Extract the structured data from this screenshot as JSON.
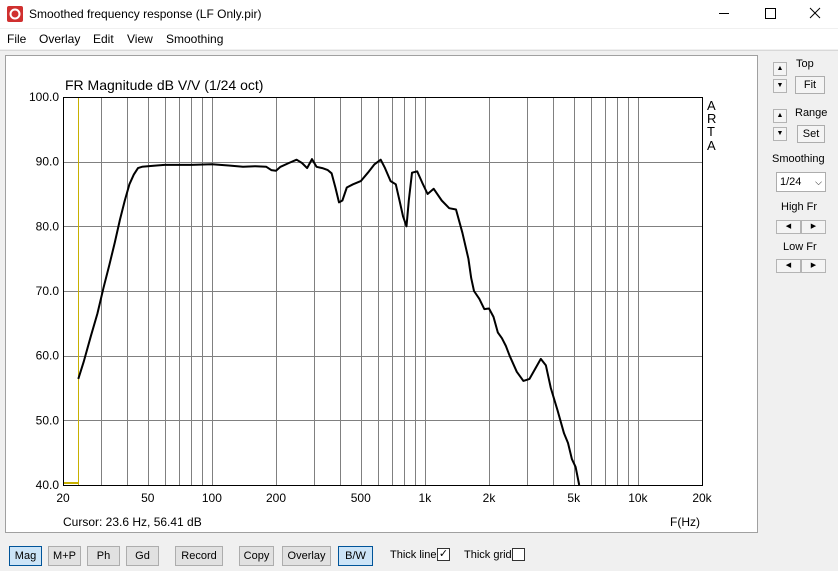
{
  "window": {
    "title": "Smoothed frequency response (LF Only.pir)",
    "minimize_glyph": "—",
    "maximize_glyph": "☐",
    "close_glyph": "✕"
  },
  "menu": [
    "File",
    "Overlay",
    "Edit",
    "View",
    "Smoothing"
  ],
  "plot": {
    "title": "FR Magnitude dB V/V (1/24 oct)",
    "watermark": [
      "A",
      "R",
      "T",
      "A"
    ],
    "cursor_text": "Cursor: 23.6 Hz, 56.41 dB",
    "x_unit_label": "F(Hz)",
    "cursor_freq_hz": 23.6,
    "trace_color": "#000000",
    "grid_color": "#808080",
    "cursor_color": "#c8b000"
  },
  "chart_data": {
    "type": "line",
    "title": "FR Magnitude dB V/V (1/24 oct)",
    "xlabel": "F(Hz)",
    "ylabel": "",
    "xscale": "log",
    "xlim": [
      20,
      20000
    ],
    "ylim": [
      40,
      100
    ],
    "x_ticks": [
      20,
      50,
      100,
      200,
      500,
      1000,
      2000,
      5000,
      10000,
      20000
    ],
    "x_tick_labels": [
      "20",
      "50",
      "100",
      "200",
      "500",
      "1k",
      "2k",
      "5k",
      "10k",
      "20k"
    ],
    "y_ticks": [
      40,
      50,
      60,
      70,
      80,
      90,
      100
    ],
    "y_tick_labels": [
      "40.0",
      "50.0",
      "60.0",
      "70.0",
      "80.0",
      "90.0",
      "100.0"
    ],
    "grid": true,
    "series": [
      {
        "x": [
          23.6,
          25,
          27,
          29,
          31,
          33,
          35,
          37,
          39,
          41,
          43,
          45,
          47,
          50,
          55,
          60,
          70,
          80,
          100,
          120,
          140,
          160,
          180,
          190,
          200,
          210,
          230,
          250,
          265,
          280,
          295,
          310,
          330,
          350,
          365,
          380,
          395,
          410,
          430,
          460,
          500,
          540,
          580,
          620,
          650,
          690,
          730,
          760,
          790,
          820,
          840,
          870,
          920,
          970,
          1030,
          1100,
          1200,
          1300,
          1400,
          1500,
          1600,
          1650,
          1700,
          1800,
          1900,
          2000,
          2100,
          2200,
          2300,
          2400,
          2500,
          2700,
          2900,
          3100,
          3300,
          3500,
          3700,
          3900,
          4200,
          4500,
          4700,
          4900,
          5100,
          5300
        ],
        "y": [
          56.41,
          59,
          63,
          66.5,
          70.5,
          74,
          77.5,
          81,
          84,
          86.5,
          88,
          89,
          89.2,
          89.3,
          89.4,
          89.5,
          89.5,
          89.5,
          89.6,
          89.4,
          89.2,
          89.3,
          89.2,
          88.7,
          88.6,
          89.2,
          89.8,
          90.3,
          89.8,
          89.0,
          90.4,
          89.2,
          89.0,
          88.7,
          88.2,
          86.0,
          83.7,
          84.0,
          86.0,
          86.5,
          87.0,
          88.3,
          89.6,
          90.3,
          89.0,
          87.0,
          86.5,
          84.0,
          81.5,
          80.0,
          84.0,
          88.3,
          88.5,
          86.8,
          85.0,
          85.8,
          84.0,
          82.8,
          82.6,
          79.0,
          75.0,
          72.0,
          70.0,
          68.8,
          67.2,
          67.3,
          66.0,
          63.6,
          62.7,
          61.5,
          60.0,
          57.5,
          56.1,
          56.4,
          58.0,
          59.5,
          58.5,
          55.0,
          51.5,
          48.0,
          46.5,
          44.0,
          42.8,
          40.0
        ]
      }
    ]
  },
  "sidebar": {
    "top_label": "Top",
    "fit_label": "Fit",
    "range_label": "Range",
    "set_label": "Set",
    "smoothing_label": "Smoothing",
    "smoothing_value": "1/24",
    "high_fr_label": "High Fr",
    "low_fr_label": "Low Fr",
    "up_glyph": "▲",
    "down_glyph": "▼",
    "left_glyph": "◀",
    "right_glyph": "▶",
    "select_glyph": "⌵"
  },
  "bottom": {
    "buttons": [
      "Mag",
      "M+P",
      "Ph",
      "Gd",
      "Record",
      "Copy",
      "Overlay",
      "B/W"
    ],
    "thick_line_label": "Thick line",
    "thick_line_checked": true,
    "thick_grid_label": "Thick grid",
    "thick_grid_checked": false,
    "check_glyph": "✓"
  }
}
